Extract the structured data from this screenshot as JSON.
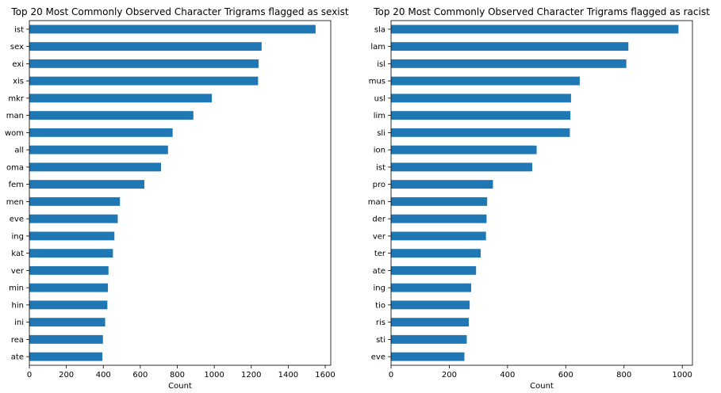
{
  "colors": {
    "bar": "#1f77b4",
    "axis": "#000000",
    "background": "#ffffff"
  },
  "chart_data": [
    {
      "type": "bar",
      "orientation": "horizontal",
      "title": "Top 20 Most Commonly Observed Character Trigrams flagged as sexist",
      "xlabel": "Count",
      "ylabel": "",
      "xlim": [
        0,
        1630
      ],
      "xticks": [
        0,
        200,
        400,
        600,
        800,
        1000,
        1200,
        1400,
        1600
      ],
      "grid": false,
      "categories": [
        "ist",
        "sex",
        "exi",
        "xis",
        "mkr",
        "man",
        "wom",
        "all",
        "oma",
        "fem",
        "men",
        "eve",
        "ing",
        "kat",
        "ver",
        "min",
        "hin",
        "ini",
        "rea",
        "ate"
      ],
      "values": [
        1548,
        1256,
        1240,
        1237,
        987,
        887,
        775,
        750,
        712,
        622,
        490,
        478,
        460,
        452,
        428,
        425,
        422,
        410,
        398,
        395
      ]
    },
    {
      "type": "bar",
      "orientation": "horizontal",
      "title": "Top 20 Most Commonly Observed Character Trigrams flagged as racist",
      "xlabel": "Count",
      "ylabel": "",
      "xlim": [
        0,
        1035
      ],
      "xticks": [
        0,
        200,
        400,
        600,
        800,
        1000
      ],
      "grid": false,
      "categories": [
        "sla",
        "lam",
        "isl",
        "mus",
        "usl",
        "lim",
        "sli",
        "ion",
        "ist",
        "pro",
        "man",
        "der",
        "ver",
        "ter",
        "ate",
        "ing",
        "tio",
        "ris",
        "sti",
        "eve"
      ],
      "values": [
        987,
        815,
        808,
        648,
        618,
        616,
        614,
        500,
        485,
        350,
        330,
        328,
        326,
        308,
        292,
        275,
        270,
        267,
        260,
        252
      ]
    }
  ]
}
